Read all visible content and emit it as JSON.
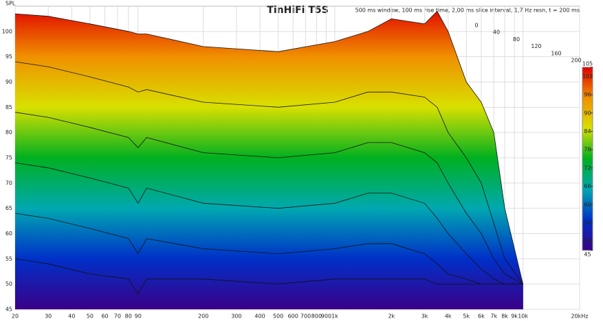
{
  "chart_data": {
    "type": "waterfall",
    "title": "TinHiFi T5S",
    "subtitle": "500 ms window, 100 ms rise time, 2,00 ms slice interval, 1,7 Hz resn, t = 200 ms",
    "ylabel": "SPL",
    "log_x": true,
    "grid": true,
    "xlim": [
      20,
      20000
    ],
    "ylim": [
      45,
      105
    ],
    "xticks": [
      20,
      30,
      40,
      50,
      60,
      70,
      80,
      90,
      200,
      300,
      400,
      500,
      600,
      700,
      800,
      900,
      {
        "value": 1000,
        "label": "1k"
      },
      {
        "value": 2000,
        "label": "2k"
      },
      {
        "value": 3000,
        "label": "3k"
      },
      {
        "value": 4000,
        "label": "4k"
      },
      {
        "value": 5000,
        "label": "5k"
      },
      {
        "value": 6000,
        "label": "6k"
      },
      {
        "value": 7000,
        "label": "7k"
      },
      {
        "value": 8000,
        "label": "8k"
      },
      {
        "value": 9000,
        "label": "9k"
      },
      {
        "value": 10000,
        "label": "10k"
      },
      {
        "value": 20000,
        "label": "20kHz"
      }
    ],
    "yticks": [
      45,
      50,
      55,
      60,
      65,
      70,
      75,
      80,
      85,
      90,
      95,
      100
    ],
    "zticks": [
      0,
      40,
      80,
      120,
      160,
      200
    ],
    "x": [
      20,
      30,
      50,
      80,
      90,
      100,
      200,
      500,
      1000,
      1500,
      2000,
      3000,
      3500,
      4000,
      5000,
      6000,
      7000,
      8000,
      10000
    ],
    "slices": [
      {
        "values": [
          103.5,
          103,
          101.5,
          100,
          99.5,
          99.5,
          97,
          96,
          98,
          100,
          102.5,
          101.5,
          104,
          100,
          90,
          86,
          80,
          65,
          50
        ]
      },
      {
        "values": [
          94,
          93,
          91,
          89,
          88,
          88.5,
          86,
          85,
          86,
          88,
          88,
          87,
          85,
          80,
          75,
          70,
          62,
          55,
          50
        ]
      },
      {
        "values": [
          84,
          83,
          81,
          79,
          77,
          79,
          76,
          75,
          76,
          78,
          78,
          76,
          74,
          70,
          64,
          60,
          55,
          52,
          50
        ]
      },
      {
        "values": [
          74,
          73,
          71,
          69,
          66,
          69,
          66,
          65,
          66,
          68,
          68,
          66,
          63,
          60,
          56,
          53,
          51,
          50,
          50
        ]
      },
      {
        "values": [
          64,
          63,
          61,
          59,
          56,
          59,
          57,
          56,
          57,
          58,
          58,
          56,
          54,
          52,
          51,
          50,
          50,
          50,
          50
        ]
      },
      {
        "values": [
          55,
          54,
          52,
          51,
          48,
          51,
          51,
          50,
          51,
          51,
          51,
          51,
          50,
          50,
          50,
          50,
          50,
          50,
          50
        ]
      }
    ],
    "colorscale": [
      "#3a0088",
      "#0030c8",
      "#00a8b0",
      "#00b020",
      "#d8e000",
      "#f09000",
      "#e00000"
    ],
    "colorbar_ticks": [
      45,
      48,
      54,
      60,
      66,
      72,
      78,
      84,
      90,
      96,
      102,
      105
    ]
  }
}
